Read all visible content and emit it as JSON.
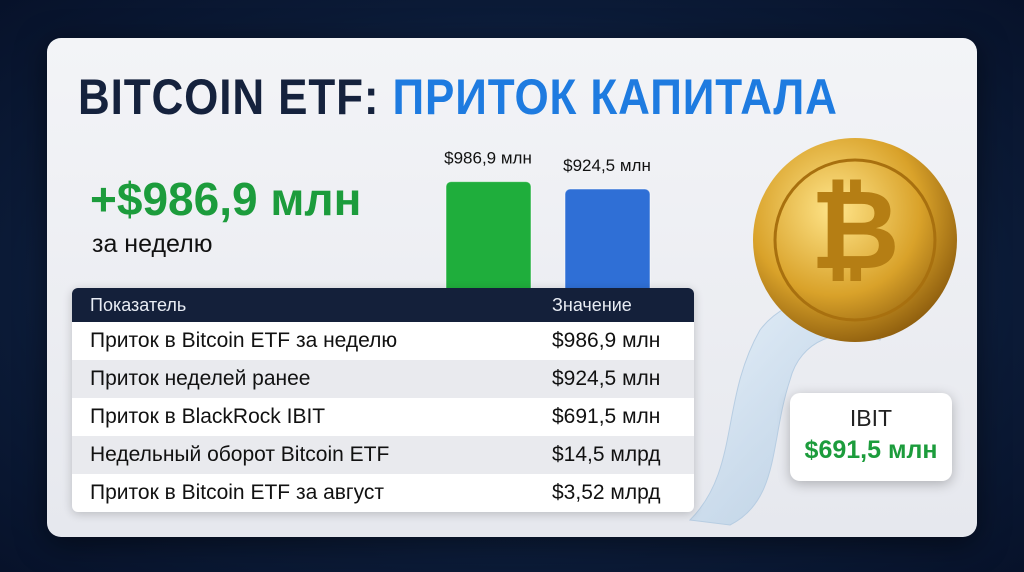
{
  "header": {
    "title_part1": "BITCOIN ETF:",
    "title_part2": "ПРИТОК КАПИТАЛА"
  },
  "headline": {
    "value": "+$986,9 млн",
    "caption": "за неделю"
  },
  "bars": [
    {
      "label": "$986,9 млн",
      "value": 986.9,
      "color": "#1fae3c"
    },
    {
      "label": "$924,5 млн",
      "value": 924.5,
      "color": "#2f6fd6"
    }
  ],
  "table": {
    "columns": [
      "Показатель",
      "Значение"
    ],
    "rows": [
      [
        "Приток в Bitcoin ETF за неделю",
        "$986,9 млн"
      ],
      [
        "Приток неделей ранее",
        "$924,5 млн"
      ],
      [
        "Приток в BlackRock IBIT",
        "$691,5 млн"
      ],
      [
        "Недельный оборот Bitcoin ETF",
        "$14,5 млрд"
      ],
      [
        "Приток в Bitcoin ETF за август",
        "$3,52 млрд"
      ]
    ]
  },
  "badge": {
    "label": "IBIT",
    "value": "$691,5 млн"
  }
}
